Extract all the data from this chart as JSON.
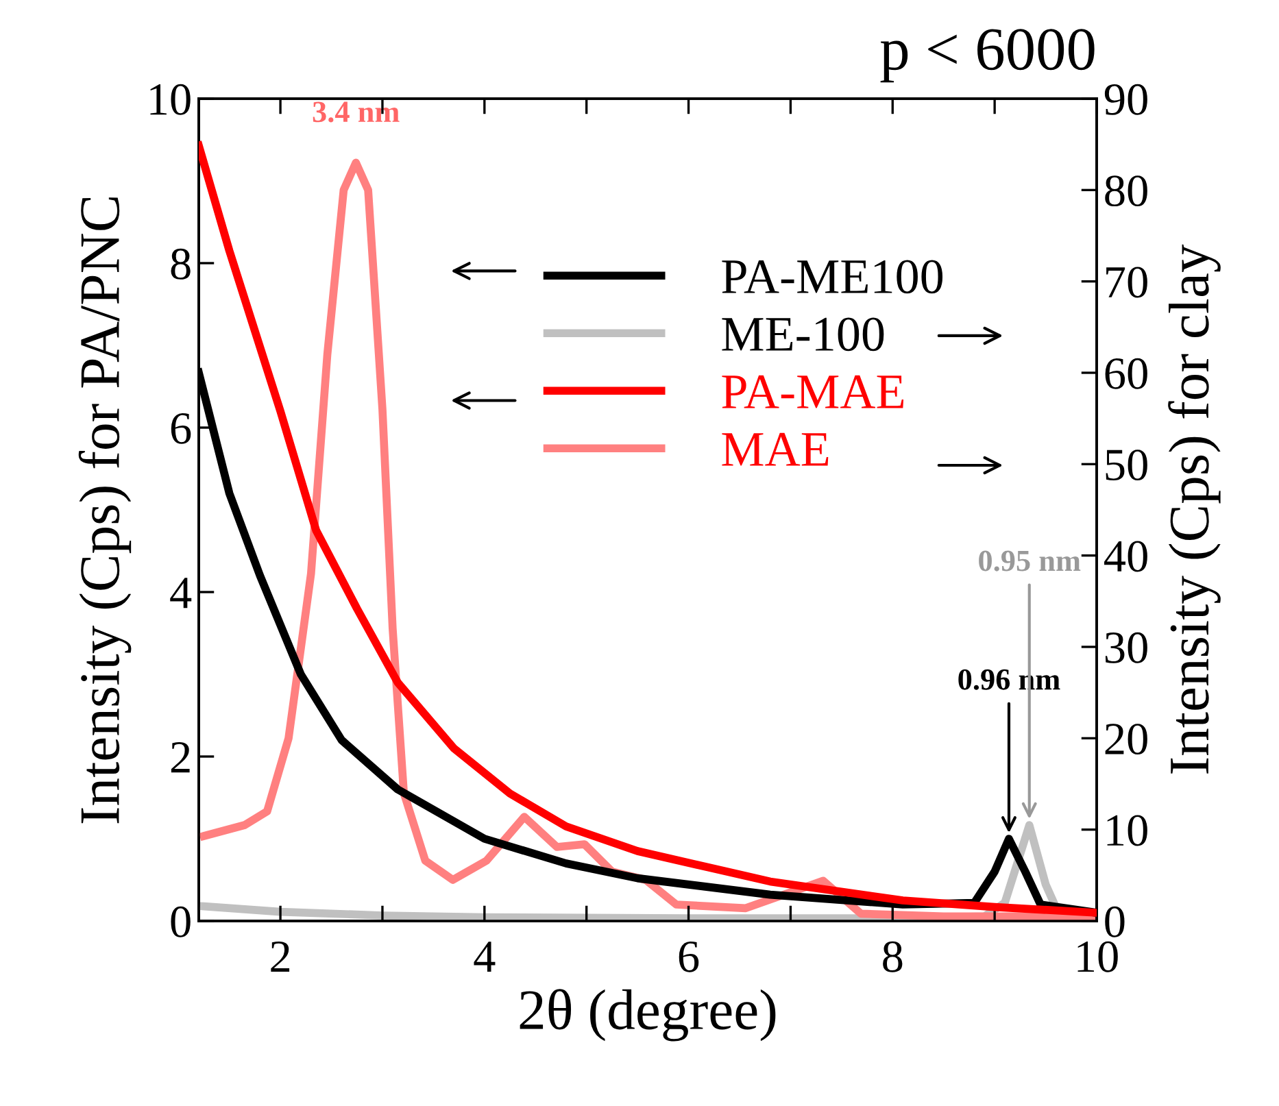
{
  "chart_data": {
    "type": "line",
    "title": "p < 6000",
    "xlabel": "2θ (degree)",
    "ylabel": "Intensity (Cps) for PA/PNC",
    "y2label": "Intensity (Cps) for clay",
    "xlim": [
      1.2,
      10
    ],
    "xticks": [
      2,
      {
        "value": 3,
        "label": null
      },
      4,
      {
        "value": 5,
        "label": null
      },
      6,
      {
        "value": 7,
        "label": null
      },
      8,
      {
        "value": 9,
        "label": null
      },
      10
    ],
    "ylim": [
      0,
      10
    ],
    "yticks": [
      0,
      2,
      4,
      6,
      8,
      10
    ],
    "y2lim": [
      0,
      90
    ],
    "y2ticks": [
      0,
      10,
      20,
      30,
      40,
      50,
      60,
      70,
      80,
      90
    ],
    "grid": false,
    "legend": "top right",
    "line_style": "solid",
    "marker": "none",
    "series": [
      {
        "name": "PA-ME100",
        "color": "#000000",
        "axis": "y",
        "x": [
          1.2,
          1.5,
          1.8,
          2.2,
          2.6,
          3.15,
          4.0,
          4.8,
          5.5,
          6.8,
          8.1,
          8.8,
          9.0,
          9.14,
          9.3,
          9.45,
          10
        ],
        "values": [
          6.67,
          5.2,
          4.2,
          3.0,
          2.2,
          1.6,
          1.0,
          0.7,
          0.52,
          0.32,
          0.2,
          0.22,
          0.6,
          1.0,
          0.6,
          0.2,
          0.1
        ]
      },
      {
        "name": "ME-100",
        "color": "#c0c0c0",
        "axis": "y2",
        "x": [
          1.25,
          2,
          3,
          4,
          6,
          8,
          8.9,
          9.1,
          9.34,
          9.5,
          9.6,
          10
        ],
        "values": [
          1.6,
          1.0,
          0.6,
          0.4,
          0.3,
          0.3,
          0.5,
          2,
          10.5,
          4,
          1.5,
          0.5
        ]
      },
      {
        "name": "PA-MAE",
        "color": "#ff0000",
        "axis": "y",
        "x": [
          1.2,
          1.5,
          2.0,
          2.35,
          2.75,
          3.15,
          3.7,
          4.25,
          4.8,
          5.5,
          6.8,
          8.1,
          9,
          10
        ],
        "values": [
          9.43,
          8.15,
          6.2,
          4.75,
          3.8,
          2.9,
          2.1,
          1.55,
          1.15,
          0.85,
          0.48,
          0.25,
          0.17,
          0.1
        ]
      },
      {
        "name": "MAE",
        "color": "#ff8080",
        "axis": "y2",
        "x": [
          1.25,
          1.65,
          1.87,
          2.08,
          2.3,
          2.46,
          2.62,
          2.74,
          2.86,
          3.0,
          3.1,
          3.21,
          3.42,
          3.69,
          4.02,
          4.39,
          4.71,
          4.98,
          5.25,
          5.58,
          5.88,
          6.56,
          7.32,
          7.69,
          8.5,
          10
        ],
        "values": [
          9.3,
          10.5,
          12,
          20,
          38,
          62,
          80,
          83,
          80,
          56,
          32,
          14,
          6.6,
          4.5,
          6.6,
          11.4,
          8.1,
          8.4,
          5.4,
          4.5,
          1.8,
          1.4,
          4.4,
          0.8,
          0.5,
          0.5
        ]
      }
    ],
    "annotations": [
      "3.4 nm",
      {
        "text": "0.96 nm",
        "x": 9.14,
        "y": 1.0
      },
      {
        "text": "0.95 nm",
        "x": 9.34,
        "y": 1.17
      }
    ]
  }
}
